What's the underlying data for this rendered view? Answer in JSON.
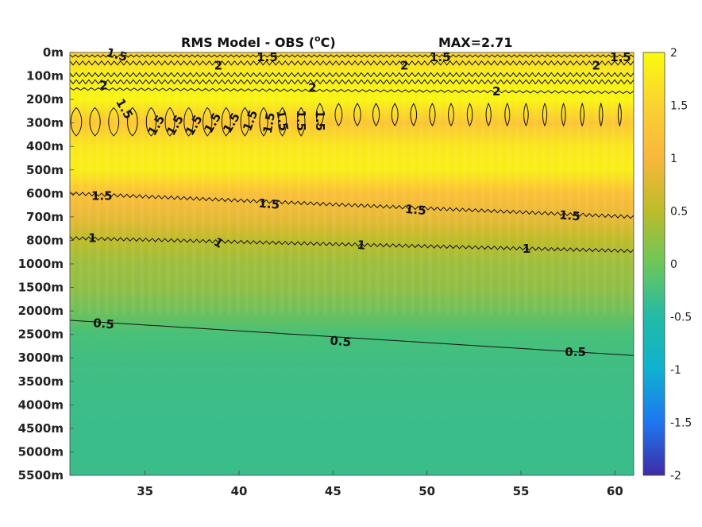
{
  "chart_data": {
    "type": "heatmap",
    "title": "RMS Model - OBS (",
    "title_unit": "o",
    "title_unit_suffix": "C)",
    "max_label": "MAX=2.71",
    "x_ticks": [
      35,
      40,
      45,
      50,
      55,
      60
    ],
    "x_range": [
      31,
      61
    ],
    "y_ticks": [
      "0m",
      "100m",
      "200m",
      "300m",
      "400m",
      "500m",
      "600m",
      "700m",
      "800m",
      "1000m",
      "1500m",
      "2000m",
      "2500m",
      "3000m",
      "3500m",
      "4000m",
      "4500m",
      "5000m",
      "5500m"
    ],
    "colorbar": {
      "ticks": [
        "2",
        "1.5",
        "1",
        "0.5",
        "0",
        "-0.5",
        "-1",
        "-1.5",
        "-2"
      ],
      "range": [
        -2,
        2
      ]
    },
    "value_profile_by_depth_index": [
      1.7,
      1.9,
      1.95,
      1.6,
      1.85,
      1.9,
      1.55,
      1.35,
      1.0,
      0.85,
      0.8,
      0.65,
      0.45,
      0.4,
      0.38,
      0.36,
      0.35,
      0.35,
      0.35
    ],
    "contour_labels": [
      {
        "text": "1.5",
        "x": 33.5,
        "y": 0.1,
        "angle": 15
      },
      {
        "text": "2",
        "x": 38.9,
        "y": 0.55,
        "angle": 0
      },
      {
        "text": "1.5",
        "x": 41.5,
        "y": 0.2,
        "angle": 0
      },
      {
        "text": "2",
        "x": 48.8,
        "y": 0.55,
        "angle": 0
      },
      {
        "text": "1.5",
        "x": 50.7,
        "y": 0.2,
        "angle": 0
      },
      {
        "text": "2",
        "x": 59,
        "y": 0.55,
        "angle": 0
      },
      {
        "text": "1.5",
        "x": 60.3,
        "y": 0.2,
        "angle": 0
      },
      {
        "text": "2",
        "x": 32.8,
        "y": 1.4,
        "angle": 0
      },
      {
        "text": "2",
        "x": 43.9,
        "y": 1.5,
        "angle": 0
      },
      {
        "text": "2",
        "x": 53.7,
        "y": 1.65,
        "angle": 0
      },
      {
        "text": "1.5",
        "x": 33.9,
        "y": 2.4,
        "angle": 60
      },
      {
        "text": "1.5",
        "x": 35.6,
        "y": 3.1,
        "angle": -60
      },
      {
        "text": "1.5",
        "x": 36.6,
        "y": 3.1,
        "angle": -60
      },
      {
        "text": "1.5",
        "x": 37.6,
        "y": 3.1,
        "angle": -60
      },
      {
        "text": "1.5",
        "x": 38.6,
        "y": 3.0,
        "angle": -60
      },
      {
        "text": "1.5",
        "x": 39.6,
        "y": 3.0,
        "angle": -60
      },
      {
        "text": "1.5",
        "x": 40.6,
        "y": 2.9,
        "angle": -70
      },
      {
        "text": "1.5",
        "x": 41.6,
        "y": 3.0,
        "angle": -80
      },
      {
        "text": "1.5",
        "x": 42.3,
        "y": 2.9,
        "angle": 80
      },
      {
        "text": "1.5",
        "x": 43.3,
        "y": 2.9,
        "angle": 90
      },
      {
        "text": "1.5",
        "x": 44.3,
        "y": 2.9,
        "angle": 90
      },
      {
        "text": "1.5",
        "x": 32.7,
        "y": 6.1,
        "angle": 0
      },
      {
        "text": "1.5",
        "x": 41.6,
        "y": 6.45,
        "angle": 5
      },
      {
        "text": "1.5",
        "x": 49.4,
        "y": 6.7,
        "angle": 5
      },
      {
        "text": "1.5",
        "x": 57.6,
        "y": 6.95,
        "angle": 5
      },
      {
        "text": "1",
        "x": 32.2,
        "y": 7.9,
        "angle": 0
      },
      {
        "text": "1",
        "x": 38.9,
        "y": 8.1,
        "angle": 30
      },
      {
        "text": "1",
        "x": 46.5,
        "y": 8.2,
        "angle": 5
      },
      {
        "text": "1",
        "x": 55.3,
        "y": 8.35,
        "angle": 0
      },
      {
        "text": "0.5",
        "x": 32.8,
        "y": 11.55,
        "angle": 5
      },
      {
        "text": "0.5",
        "x": 45.4,
        "y": 12.3,
        "angle": 5
      },
      {
        "text": "0.5",
        "x": 57.9,
        "y": 12.75,
        "angle": 0
      }
    ]
  }
}
